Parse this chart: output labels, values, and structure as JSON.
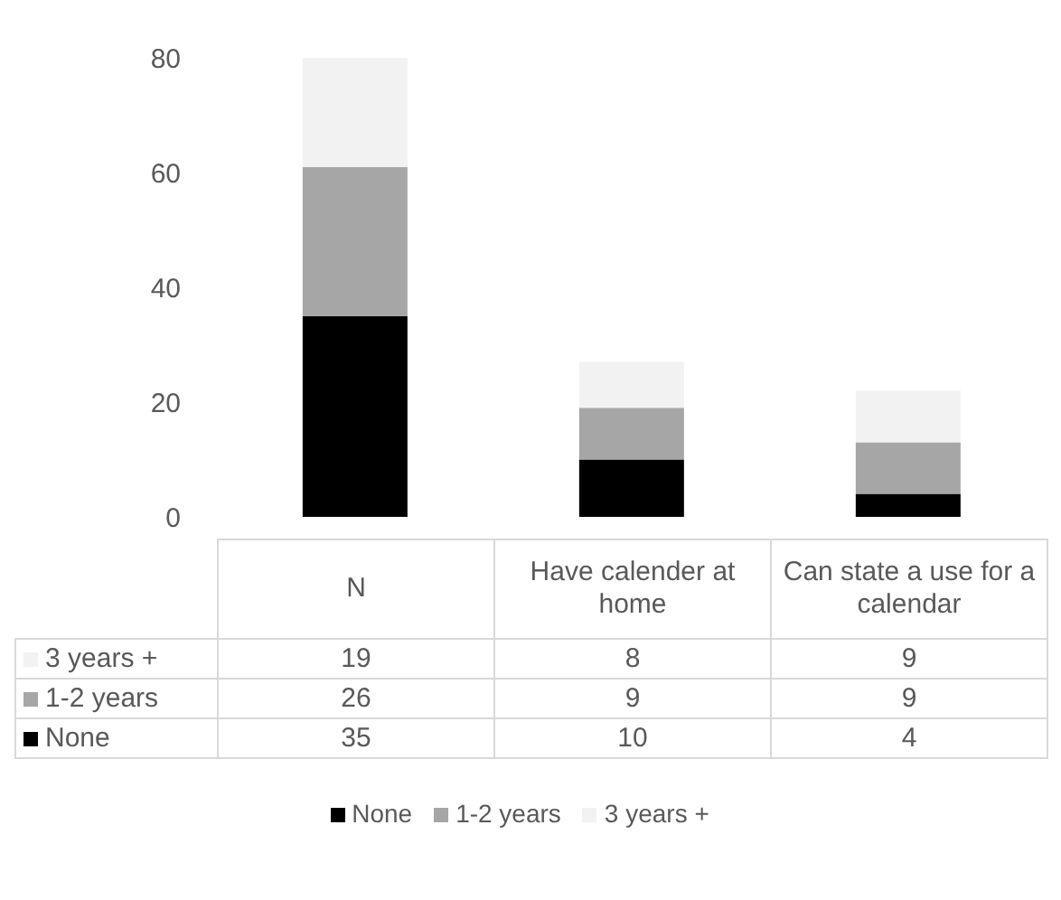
{
  "chart_data": {
    "type": "bar",
    "stacked": true,
    "categories": [
      "N",
      "Have calender at home",
      "Can state a use for a calendar"
    ],
    "series": [
      {
        "name": "None",
        "color": "#000000",
        "values": [
          35,
          10,
          4
        ]
      },
      {
        "name": "1-2 years",
        "color": "#a6a6a6",
        "values": [
          26,
          9,
          9
        ]
      },
      {
        "name": "3 years +",
        "color": "#f2f2f2",
        "values": [
          19,
          8,
          9
        ]
      }
    ],
    "ylim": [
      0,
      80
    ],
    "yticks": [
      0,
      20,
      40,
      60,
      80
    ],
    "data_labels": true,
    "legend": "bottom"
  }
}
